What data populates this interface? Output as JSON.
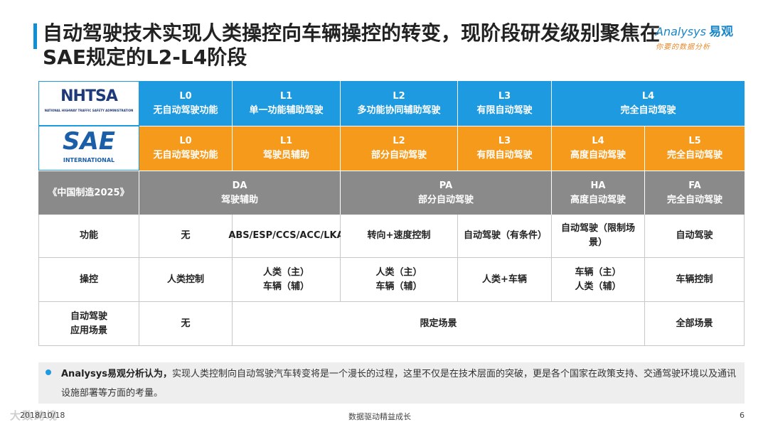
{
  "title": "自动驾驶技术实现人类操控向车辆操控的转变，现阶段研发级别聚焦在SAE规定的L2-L4阶段",
  "logo": {
    "brand": "Analysys",
    "brand_cn": "易观",
    "slogan": "你要的数据分析"
  },
  "nhtsa": {
    "logo_text": "NHTSA",
    "logo_sub": "NATIONAL HIGHWAY TRAFFIC SAFETY ADMINISTRATION",
    "levels": [
      {
        "code": "L0",
        "name": "无自动驾驶功能"
      },
      {
        "code": "L1",
        "name": "单一功能辅助驾驶"
      },
      {
        "code": "L2",
        "name": "多功能协同辅助驾驶"
      },
      {
        "code": "L3",
        "name": "有限自动驾驶"
      },
      {
        "code": "L4",
        "name": "完全自动驾驶"
      }
    ]
  },
  "sae": {
    "logo_text": "SAE",
    "logo_sub": "INTERNATIONAL",
    "levels": [
      {
        "code": "L0",
        "name": "无自动驾驶功能"
      },
      {
        "code": "L1",
        "name": "驾驶员辅助"
      },
      {
        "code": "L2",
        "name": "部分自动驾驶"
      },
      {
        "code": "L3",
        "name": "有限自动驾驶"
      },
      {
        "code": "L4",
        "name": "高度自动驾驶"
      },
      {
        "code": "L5",
        "name": "完全自动驾驶"
      }
    ]
  },
  "china": {
    "label": "《中国制造2025》",
    "levels": [
      {
        "code": "DA",
        "name": "驾驶辅助"
      },
      {
        "code": "PA",
        "name": "部分自动驾驶"
      },
      {
        "code": "HA",
        "name": "高度自动驾驶"
      },
      {
        "code": "FA",
        "name": "完全自动驾驶"
      }
    ]
  },
  "rows": {
    "function": {
      "label": "功能",
      "l0": "无",
      "l1": "ABS/ESP/CCS/ACC/LKA",
      "l2": "转向+速度控制",
      "l3": "自动驾驶（有条件）",
      "l4": "自动驾驶（限制场景）",
      "l5": "自动驾驶"
    },
    "control": {
      "label": "操控",
      "l0": "人类控制",
      "l1_a": "人类（主）",
      "l1_b": "车辆（辅）",
      "l2_a": "人类（主）",
      "l2_b": "车辆（辅）",
      "l3": "人类+车辆",
      "l4_a": "车辆（主）",
      "l4_b": "人类（辅）",
      "l5": "车辆控制"
    },
    "scenario": {
      "label_a": "自动驾驶",
      "label_b": "应用场景",
      "l0": "无",
      "mid": "限定场景",
      "l5": "全部场景"
    }
  },
  "note": {
    "bold": "Analysys易观分析认为，",
    "text": "实现人类控制向自动驾驶汽车转变将是一个漫长的过程，这里不仅是在技术层面的突破，更是各个国家在政策支持、交通驾驶环境以及通讯设施部署等方面的考量。"
  },
  "footer": {
    "date": "2018/10/18",
    "center": "数据驱动精益成长",
    "page": "6",
    "watermark": "大数跨境"
  }
}
